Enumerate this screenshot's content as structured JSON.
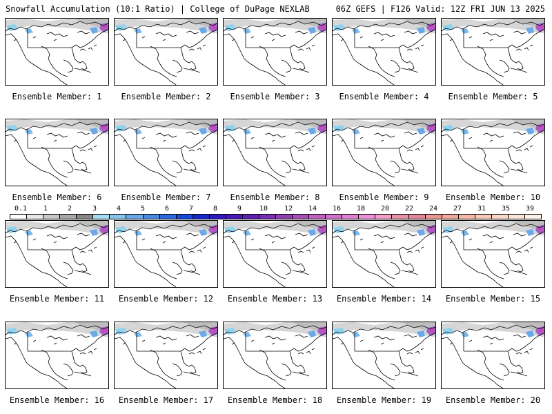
{
  "header": {
    "left": "Snowfall Accumulation (10:1 Ratio) | College of DuPage NEXLAB",
    "right": "06Z GEFS | F126 Valid: 12Z FRI JUN 13 2025"
  },
  "colorbar": {
    "ticks": [
      "0.1",
      "1",
      "2",
      "3",
      "4",
      "5",
      "6",
      "7",
      "8",
      "9",
      "10",
      "12",
      "14",
      "16",
      "18",
      "20",
      "22",
      "24",
      "27",
      "31",
      "35",
      "39"
    ],
    "colors": [
      "#ffffff",
      "#e8e8e8",
      "#c8c8c8",
      "#a8a8a8",
      "#888888",
      "#a8dcf0",
      "#88c4ec",
      "#6aa8e8",
      "#4c88e0",
      "#3068dc",
      "#1848d8",
      "#1a28c8",
      "#3018c0",
      "#4818b8",
      "#5e20b0",
      "#7830b0",
      "#9040b0",
      "#a850b8",
      "#c060c0",
      "#d070c8",
      "#e080d0",
      "#f090d8",
      "#f0a0c8",
      "#e890a8",
      "#e08898",
      "#e89890",
      "#f0a898",
      "#f8b8a8",
      "#f8c8b8",
      "#fad8c8",
      "#fce4d8",
      "#fdf0e8"
    ]
  },
  "panels": [
    {
      "label": "Ensemble Member: 1"
    },
    {
      "label": "Ensemble Member: 2"
    },
    {
      "label": "Ensemble Member: 3"
    },
    {
      "label": "Ensemble Member: 4"
    },
    {
      "label": "Ensemble Member: 5"
    },
    {
      "label": "Ensemble Member: 6"
    },
    {
      "label": "Ensemble Member: 7"
    },
    {
      "label": "Ensemble Member: 8"
    },
    {
      "label": "Ensemble Member: 9"
    },
    {
      "label": "Ensemble Member: 10"
    },
    {
      "label": "Ensemble Member: 11"
    },
    {
      "label": "Ensemble Member: 12"
    },
    {
      "label": "Ensemble Member: 13"
    },
    {
      "label": "Ensemble Member: 14"
    },
    {
      "label": "Ensemble Member: 15"
    },
    {
      "label": "Ensemble Member: 16"
    },
    {
      "label": "Ensemble Member: 17"
    },
    {
      "label": "Ensemble Member: 18"
    },
    {
      "label": "Ensemble Member: 19"
    },
    {
      "label": "Ensemble Member: 20"
    }
  ]
}
